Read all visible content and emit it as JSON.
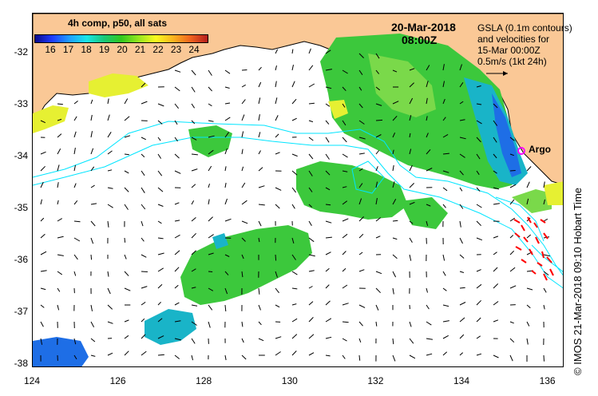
{
  "legend": {
    "title": "4h comp, p50, all sats",
    "ticks": [
      "16",
      "17",
      "18",
      "19",
      "20",
      "21",
      "22",
      "23",
      "24"
    ],
    "colors": [
      "#0a0a8c",
      "#1e3cff",
      "#1ea0ff",
      "#19e6e6",
      "#19c878",
      "#32c81e",
      "#96e61e",
      "#fafa1e",
      "#fab41e",
      "#f0641e",
      "#b41e1e"
    ]
  },
  "header": {
    "date": "20-Mar-2018",
    "time": "08:00Z"
  },
  "gsla_note": {
    "line1": "GSLA (0.1m contours)",
    "line2": "and velocities for",
    "line3": "15-Mar 00:00Z",
    "line4": "0.5m/s (1kt 24h)"
  },
  "argo": {
    "label": "Argo",
    "color": "#ff00ff"
  },
  "credit": "© IMOS 21-Mar-2018 09:10 Hobart Time",
  "axes": {
    "y_ticks": [
      "-32",
      "-33",
      "-34",
      "-35",
      "-36",
      "-37",
      "-38"
    ],
    "x_ticks": [
      "124",
      "126",
      "128",
      "130",
      "132",
      "134",
      "136"
    ]
  },
  "colors": {
    "land": "#fac896",
    "contour": "#00e5ff",
    "sst_main": "#3cc83c",
    "sst_light": "#7ad94a",
    "sst_yellow": "#e6f032",
    "sst_cyan": "#19b4c8",
    "sst_blue": "#1e6ee6",
    "velocity_arrow": "#000000",
    "red_marks": "#ff0000"
  }
}
